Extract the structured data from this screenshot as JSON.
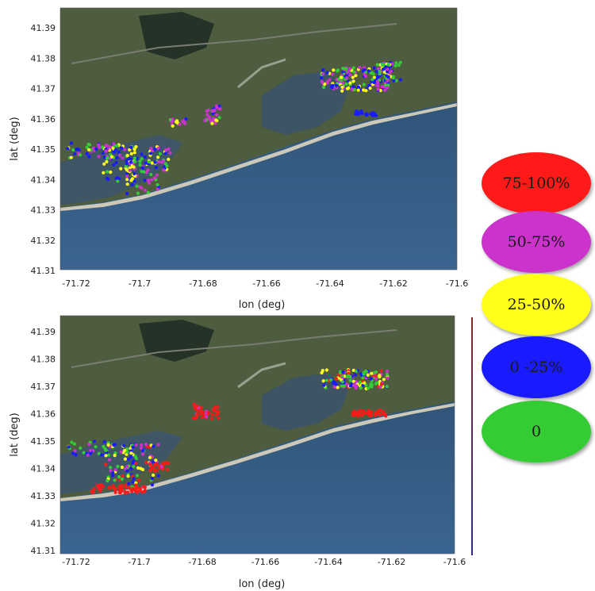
{
  "maps": [
    {
      "name": "top",
      "lon_ticks": [
        "-71.72",
        "-71.7",
        "-71.68",
        "-71.66",
        "-71.64",
        "-71.62",
        "-71.6"
      ],
      "lat_ticks": [
        "41.39",
        "41.38",
        "41.37",
        "41.36",
        "41.35",
        "41.34",
        "41.33",
        "41.32",
        "41.31"
      ],
      "xlabel": "lon (deg)",
      "ylabel": "lat (deg)"
    },
    {
      "name": "bottom",
      "lon_ticks": [
        "-71.72",
        "-71.7",
        "-71.68",
        "-71.66",
        "-71.64",
        "-71.62",
        "-71.6"
      ],
      "lat_ticks": [
        "41.39",
        "41.38",
        "41.37",
        "41.36",
        "41.35",
        "41.34",
        "41.33",
        "41.32",
        "41.31"
      ],
      "xlabel": "lon (deg)",
      "ylabel": "lat (deg)"
    }
  ],
  "legend": [
    {
      "label": "75-100%",
      "color": "#ff1a1a"
    },
    {
      "label": "50-75%",
      "color": "#cc33cc"
    },
    {
      "label": "25-50%",
      "color": "#ffff1a"
    },
    {
      "label": "0 -25%",
      "color": "#1a1aff"
    },
    {
      "label": "0",
      "color": "#33cc33"
    }
  ],
  "colors": {
    "land": "#4c5a3e",
    "water": "#3a5165",
    "ocean": "#24476a",
    "beach": "#cdc9b8"
  }
}
